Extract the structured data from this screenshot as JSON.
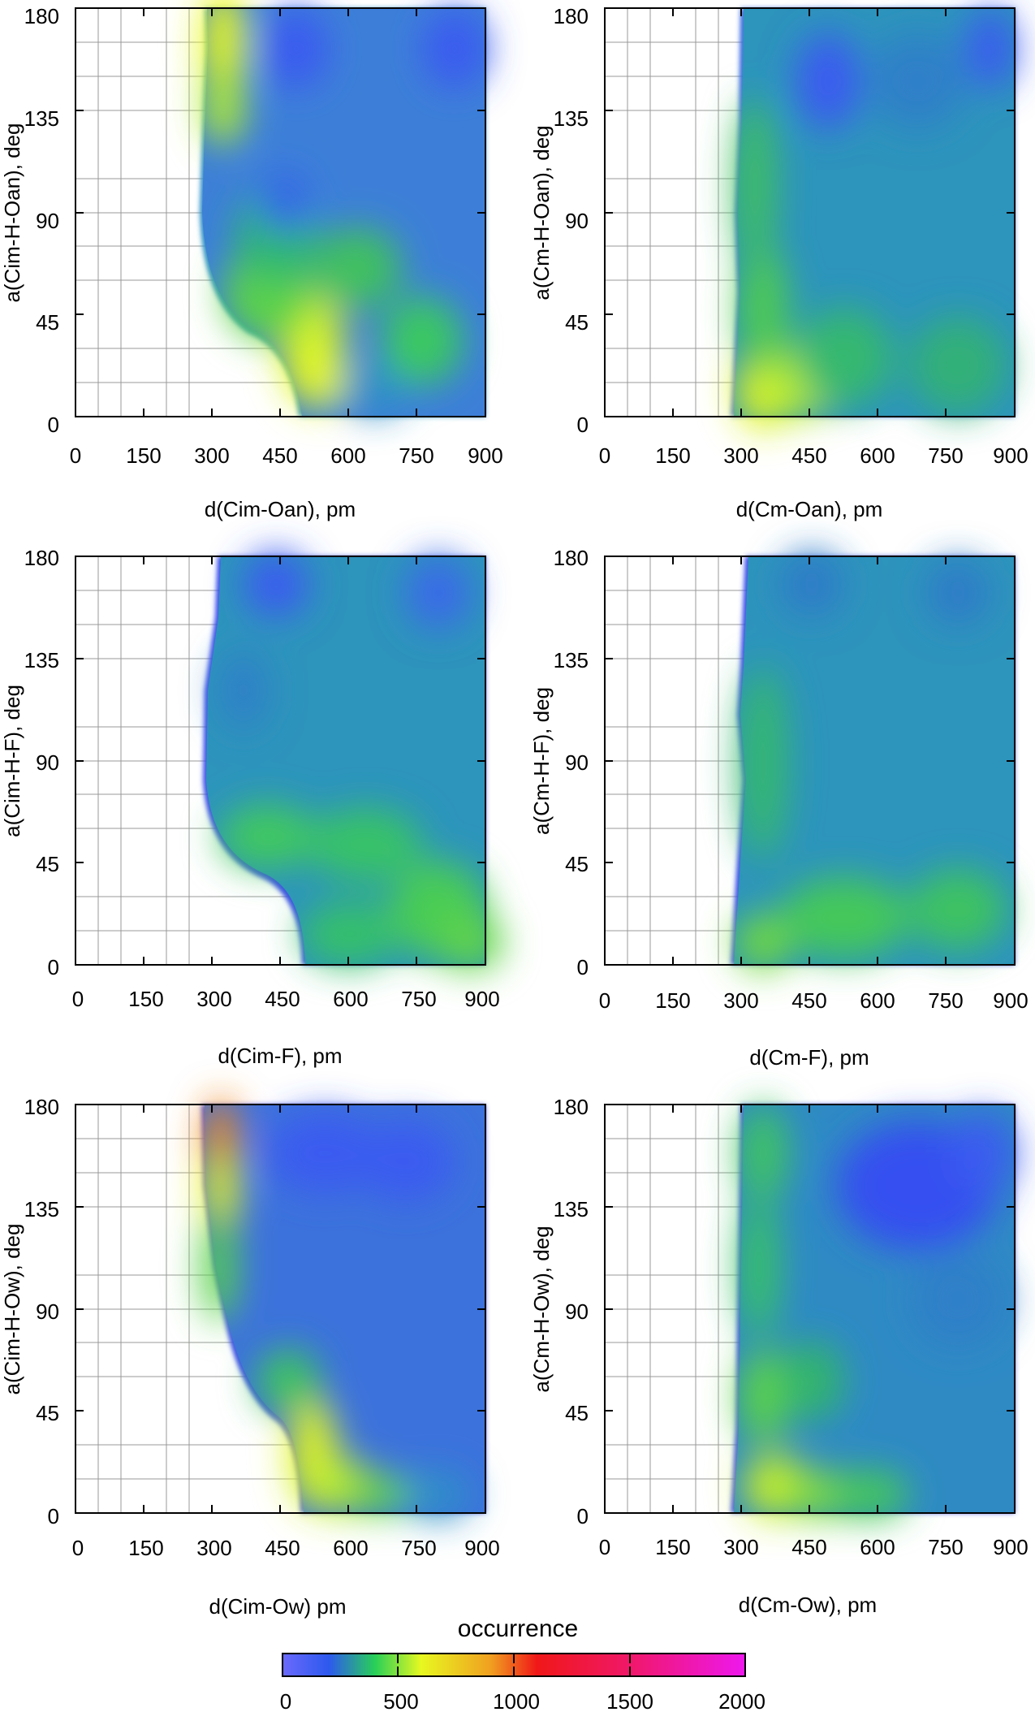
{
  "chart_data": [
    {
      "type": "heatmap",
      "id": "p1",
      "xlabel": "d(Cim-Oan), pm",
      "ylabel": "a(Cim-H-Oan), deg",
      "xlim": [
        0,
        900
      ],
      "ylim": [
        0,
        180
      ],
      "xticks": [
        "0",
        "150",
        "300",
        "450",
        "600",
        "750",
        "900"
      ],
      "yticks": [
        "0",
        "45",
        "90",
        "135",
        "180"
      ],
      "grid": true,
      "hotspots": [
        {
          "x": 320,
          "y": 160,
          "occurrence": 850
        },
        {
          "x": 310,
          "y": 130,
          "occurrence": 700
        },
        {
          "x": 520,
          "y": 35,
          "occurrence": 800
        },
        {
          "x": 560,
          "y": 20,
          "occurrence": 700
        },
        {
          "x": 450,
          "y": 45,
          "occurrence": 420
        },
        {
          "x": 780,
          "y": 35,
          "occurrence": 380
        },
        {
          "x": 650,
          "y": 60,
          "occurrence": 360
        },
        {
          "x": 420,
          "y": 70,
          "occurrence": 340
        },
        {
          "x": 430,
          "y": 100,
          "occurrence": 120
        },
        {
          "x": 470,
          "y": 170,
          "occurrence": 120
        }
      ]
    },
    {
      "type": "heatmap",
      "id": "p2",
      "xlabel": "d(Cm-Oan), pm",
      "ylabel": "a(Cm-H-Oan), deg",
      "xlim": [
        0,
        900
      ],
      "ylim": [
        0,
        180
      ],
      "xticks": [
        "0",
        "150",
        "300",
        "450",
        "600",
        "750",
        "900"
      ],
      "yticks": [
        "0",
        "45",
        "90",
        "135",
        "180"
      ],
      "grid": true,
      "hotspots": [
        {
          "x": 340,
          "y": 10,
          "occurrence": 820
        },
        {
          "x": 400,
          "y": 15,
          "occurrence": 700
        },
        {
          "x": 340,
          "y": 50,
          "occurrence": 520
        },
        {
          "x": 310,
          "y": 110,
          "occurrence": 360
        },
        {
          "x": 500,
          "y": 30,
          "occurrence": 380
        },
        {
          "x": 500,
          "y": 150,
          "occurrence": 110
        },
        {
          "x": 820,
          "y": 170,
          "occurrence": 150
        }
      ]
    },
    {
      "type": "heatmap",
      "id": "p3",
      "xlabel": "d(Cim-F), pm",
      "ylabel": "a(Cim-H-F), deg",
      "xlim": [
        0,
        900
      ],
      "ylim": [
        0,
        180
      ],
      "xticks": [
        "0",
        "150",
        "300",
        "450",
        "600",
        "750",
        "900"
      ],
      "yticks": [
        "0",
        "45",
        "90",
        "135",
        "180"
      ],
      "grid": true,
      "hotspots": [
        {
          "x": 400,
          "y": 60,
          "occurrence": 580
        },
        {
          "x": 600,
          "y": 55,
          "occurrence": 520
        },
        {
          "x": 620,
          "y": 15,
          "occurrence": 560
        },
        {
          "x": 780,
          "y": 30,
          "occurrence": 600
        },
        {
          "x": 860,
          "y": 15,
          "occurrence": 580
        },
        {
          "x": 450,
          "y": 170,
          "occurrence": 100
        },
        {
          "x": 780,
          "y": 165,
          "occurrence": 140
        }
      ]
    },
    {
      "type": "heatmap",
      "id": "p4",
      "xlabel": "d(Cm-F), pm",
      "ylabel": "a(Cm-H-F), deg",
      "xlim": [
        0,
        900
      ],
      "ylim": [
        0,
        180
      ],
      "xticks": [
        "0",
        "150",
        "300",
        "450",
        "600",
        "750",
        "900"
      ],
      "yticks": [
        "0",
        "45",
        "90",
        "135",
        "180"
      ],
      "grid": true,
      "hotspots": [
        {
          "x": 350,
          "y": 10,
          "occurrence": 640
        },
        {
          "x": 550,
          "y": 25,
          "occurrence": 520
        },
        {
          "x": 800,
          "y": 30,
          "occurrence": 440
        },
        {
          "x": 330,
          "y": 90,
          "occurrence": 380
        },
        {
          "x": 450,
          "y": 170,
          "occurrence": 220
        },
        {
          "x": 780,
          "y": 165,
          "occurrence": 210
        }
      ]
    },
    {
      "type": "heatmap",
      "id": "p5",
      "xlabel": "d(Cim-Ow) pm",
      "ylabel": "a(Cim-H-Ow), deg",
      "xlim": [
        0,
        900
      ],
      "ylim": [
        0,
        180
      ],
      "xticks": [
        "0",
        "150",
        "300",
        "450",
        "600",
        "750",
        "900"
      ],
      "yticks": [
        "0",
        "45",
        "90",
        "135",
        "180"
      ],
      "grid": true,
      "hotspots": [
        {
          "x": 320,
          "y": 165,
          "occurrence": 1150
        },
        {
          "x": 320,
          "y": 135,
          "occurrence": 750
        },
        {
          "x": 310,
          "y": 100,
          "occurrence": 480
        },
        {
          "x": 530,
          "y": 35,
          "occurrence": 780
        },
        {
          "x": 560,
          "y": 15,
          "occurrence": 640
        },
        {
          "x": 680,
          "y": 10,
          "occurrence": 540
        },
        {
          "x": 420,
          "y": 45,
          "occurrence": 380
        },
        {
          "x": 450,
          "y": 165,
          "occurrence": 100
        },
        {
          "x": 700,
          "y": 150,
          "occurrence": 120
        }
      ]
    },
    {
      "type": "heatmap",
      "id": "p6",
      "xlabel": "d(Cm-Ow), pm",
      "ylabel": "a(Cm-H-Ow), deg",
      "xlim": [
        0,
        900
      ],
      "ylim": [
        0,
        180
      ],
      "xticks": [
        "0",
        "150",
        "300",
        "450",
        "600",
        "750",
        "900"
      ],
      "yticks": [
        "0",
        "45",
        "90",
        "135",
        "180"
      ],
      "grid": true,
      "hotspots": [
        {
          "x": 380,
          "y": 10,
          "occurrence": 740
        },
        {
          "x": 340,
          "y": 45,
          "occurrence": 600
        },
        {
          "x": 330,
          "y": 110,
          "occurrence": 420
        },
        {
          "x": 450,
          "y": 25,
          "occurrence": 480
        },
        {
          "x": 550,
          "y": 15,
          "occurrence": 440
        },
        {
          "x": 560,
          "y": 140,
          "occurrence": 70
        },
        {
          "x": 650,
          "y": 160,
          "occurrence": 90
        }
      ]
    }
  ],
  "colorbar": {
    "title": "occurrence",
    "ticks": [
      "0",
      "500",
      "1000",
      "1500",
      "2000"
    ],
    "range": [
      0,
      2000
    ],
    "colors": [
      "#6a6afc",
      "#2d59ee",
      "#28d058",
      "#e8f820",
      "#f0a020",
      "#f01818",
      "#ee18ee"
    ]
  }
}
